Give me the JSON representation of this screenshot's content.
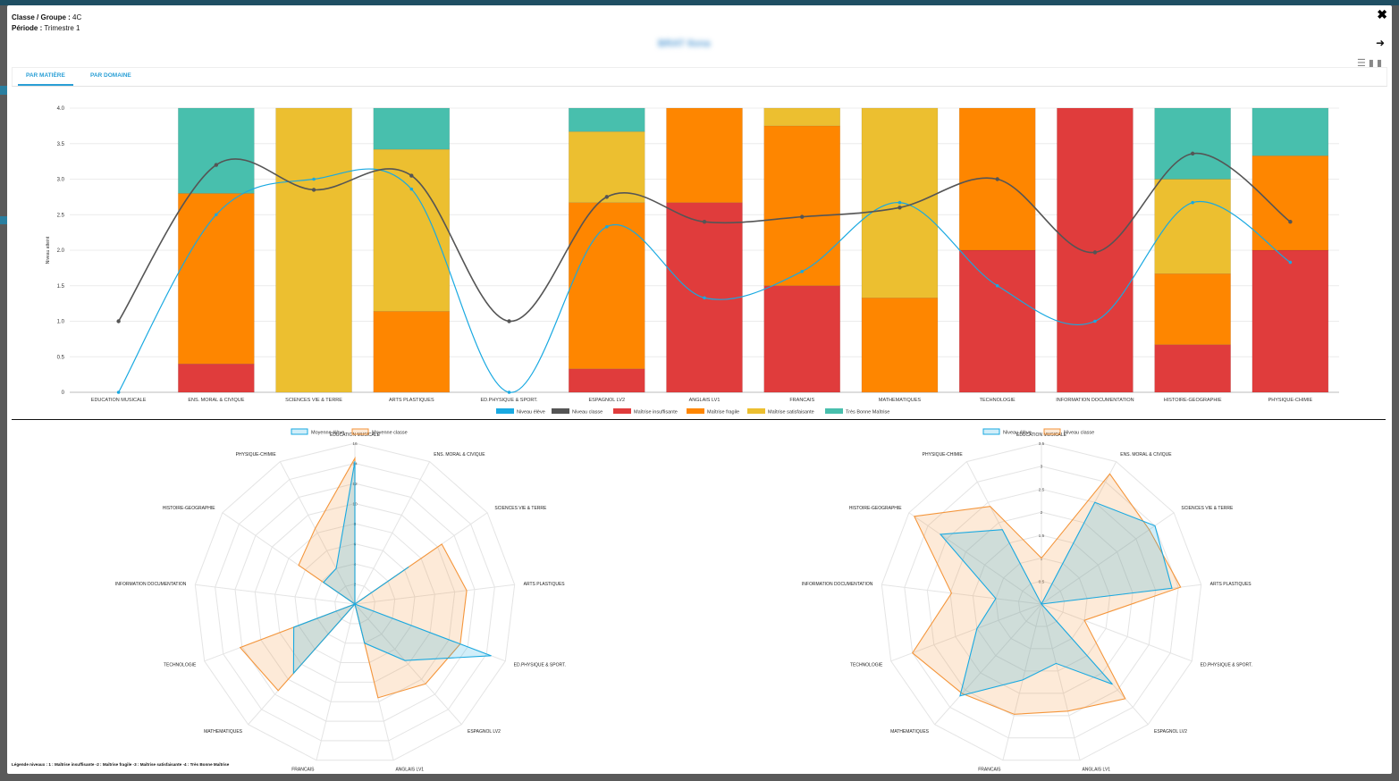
{
  "header": {
    "classe_label": "Classe / Groupe :",
    "classe_value": "4C",
    "periode_label": "Période :",
    "periode_value": "Trimestre 1",
    "student_name": "BRAT Ilona"
  },
  "tabs": [
    {
      "label": "PAR MATIÈRE",
      "active": true
    },
    {
      "label": "PAR DOMAINE",
      "active": false
    }
  ],
  "icons": {
    "close": "close-icon",
    "next": "arrow-right-icon",
    "list": "list-icon",
    "chart": "bar-chart-icon"
  },
  "legend_note": "Légende niveaux : 1 : Maîtrise insuffisante -2 : Maîtrise fragile -3 : Maîtrise satisfaisante -4 : Très Bonne Maîtrise",
  "colors": {
    "insuffisante": "#e03c3c",
    "fragile": "#fe8600",
    "satisfaisante": "#ecbf30",
    "tres_bonne": "#48bfad",
    "niveau_eleve": "#19a9e1",
    "niveau_classe": "#555555",
    "moyenne_classe": "#f4963c"
  },
  "chart_data": [
    {
      "type": "bar",
      "stacked": true,
      "ylabel": "Niveau atteint",
      "ylim": [
        0,
        4
      ],
      "yticks": [
        "0",
        "0.5",
        "1.0",
        "1.5",
        "2.0",
        "2.5",
        "3.0",
        "3.5",
        "4.0"
      ],
      "categories": [
        "EDUCATION MUSICALE",
        "ENS. MORAL & CIVIQUE",
        "SCIENCES VIE & TERRE",
        "ARTS PLASTIQUES",
        "ED.PHYSIQUE & SPORT.",
        "ESPAGNOL LV2",
        "ANGLAIS LV1",
        "FRANCAIS",
        "MATHEMATIQUES",
        "TECHNOLOGIE",
        "INFORMATION DOCUMENTATION",
        "HISTOIRE-GEOGRAPHIE",
        "PHYSIQUE-CHIMIE"
      ],
      "series": [
        {
          "name": "Niveau élève",
          "kind": "line",
          "values": [
            0,
            2.5,
            3.0,
            2.86,
            0,
            2.33,
            1.33,
            1.7,
            2.67,
            1.5,
            1.0,
            2.67,
            1.83
          ]
        },
        {
          "name": "Niveau classe",
          "kind": "line",
          "values": [
            1.0,
            3.2,
            2.85,
            3.05,
            1.0,
            2.75,
            2.4,
            2.47,
            2.6,
            3.0,
            1.97,
            3.36,
            2.4
          ]
        },
        {
          "name": "Maîtrise insuffisante",
          "kind": "bar",
          "values": [
            0,
            0.4,
            0,
            0,
            0,
            0.33,
            2.67,
            1.5,
            0,
            2.0,
            4.0,
            0.67,
            2.0
          ]
        },
        {
          "name": "Maîtrise fragile",
          "kind": "bar",
          "values": [
            0,
            2.4,
            0,
            1.14,
            0,
            2.34,
            1.33,
            2.25,
            1.33,
            2.0,
            0,
            1.0,
            1.33
          ]
        },
        {
          "name": "Maîtrise satisfaisante",
          "kind": "bar",
          "values": [
            0,
            0,
            4.0,
            2.28,
            0,
            1.0,
            0,
            0.25,
            2.67,
            0,
            0,
            1.33,
            0
          ]
        },
        {
          "name": "Très Bonne Maîtrise",
          "kind": "bar",
          "values": [
            0,
            1.2,
            0,
            0.58,
            0,
            0.33,
            0,
            0,
            0,
            0,
            0,
            1.0,
            0.67
          ]
        }
      ],
      "legend": "bottom"
    },
    {
      "type": "radar",
      "legend": "top",
      "categories": [
        "EDUCATION MUSICALE",
        "ENS. MORAL & CIVIQUE",
        "SCIENCES VIE & TERRE",
        "ARTS PLASTIQUES",
        "ED.PHYSIQUE & SPORT.",
        "ESPAGNOL LV2",
        "ANGLAIS LV1",
        "FRANCAIS",
        "MATHEMATIQUES",
        "TECHNOLOGIE",
        "INFORMATION DOCUMENTATION",
        "HISTOIRE-GEOGRAPHIE",
        "PHYSIQUE-CHIMIE"
      ],
      "rmax": 16,
      "ticks": [
        "2",
        "4",
        "6",
        "8",
        "10",
        "12",
        "14",
        "16"
      ],
      "series": [
        {
          "name": "Moyenne élève",
          "values": [
            14.2,
            0,
            6.5,
            0,
            14.5,
            7.5,
            4.0,
            0,
            9.2,
            6.5,
            0,
            3.8,
            4.0
          ]
        },
        {
          "name": "Moyenne classe",
          "values": [
            14.5,
            0,
            10.5,
            11.2,
            11.2,
            10.6,
            9.6,
            0,
            11.5,
            12.2,
            0,
            6.8,
            8.5
          ]
        }
      ]
    },
    {
      "type": "radar",
      "legend": "top",
      "categories": [
        "EDUCATION MUSICALE",
        "ENS. MORAL & CIVIQUE",
        "SCIENCES VIE & TERRE",
        "ARTS PLASTIQUES",
        "ED.PHYSIQUE & SPORT.",
        "ESPAGNOL LV2",
        "ANGLAIS LV1",
        "FRANCAIS",
        "MATHEMATIQUES",
        "TECHNOLOGIE",
        "INFORMATION DOCUMENTATION",
        "HISTOIRE-GEOGRAPHIE",
        "PHYSIQUE-CHIMIE"
      ],
      "rmax": 3.5,
      "ticks": [
        "0.5",
        "1",
        "1.5",
        "2",
        "2.5",
        "3",
        "3.5"
      ],
      "series": [
        {
          "name": "Niveau élève",
          "values": [
            0,
            2.5,
            3.0,
            2.86,
            0,
            2.33,
            1.33,
            1.7,
            2.67,
            1.5,
            1.0,
            2.67,
            1.83
          ]
        },
        {
          "name": "Niveau classe",
          "values": [
            1.0,
            3.2,
            2.85,
            3.05,
            1.0,
            2.75,
            2.4,
            2.47,
            2.6,
            3.0,
            1.97,
            3.36,
            2.4
          ]
        }
      ]
    }
  ]
}
